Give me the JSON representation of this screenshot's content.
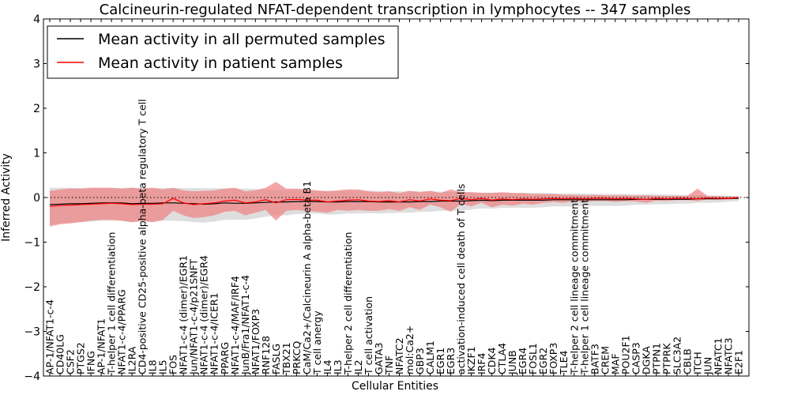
{
  "chart_data": {
    "type": "line",
    "title": "Calcineurin-regulated NFAT-dependent transcription in lymphocytes -- 347 samples",
    "xlabel": "Cellular Entities",
    "ylabel": "Inferred Activity",
    "ylim": [
      -4,
      4
    ],
    "yticks": [
      -4,
      -3,
      -2,
      -1,
      0,
      1,
      2,
      3,
      4
    ],
    "ytick_labels": [
      "−4",
      "−3",
      "−2",
      "−1",
      "0",
      "1",
      "2",
      "3",
      "4"
    ],
    "grid": false,
    "legend_position": "top-left",
    "categories": [
      "AP-1/NFAT1-c-4",
      "CD40LG",
      "CSF2",
      "PTGS2",
      "IFNG",
      "AP-1/NFAT1",
      "T-helper 1 cell differentiation",
      "NFAT1-c-4/PPARG",
      "IL2RA",
      "CD4-positive CD25-positive alpha-beta regulatory T cell",
      "IL8",
      "IL5",
      "FOS",
      "NFAT1-c-4 (dimer)/EGR1",
      "Jun/NFAT1-c-4/p21SNFT",
      "NFAT1-c-4 (dimer)/EGR4",
      "NFAT1-c-4/ICER1",
      "PPARG",
      "NFAT1-c-4/MAF/IRF4",
      "JunB/Fra1/NFAT1-c-4",
      "NFAT1/FOXP3",
      "RNF128",
      "FASLG",
      "TBX21",
      "PRKCQ",
      "CaM/Ca2+/Calcineurin A alpha-beta B1",
      "T cell anergy",
      "IL4",
      "IL3",
      "T-helper 2 cell differentiation",
      "IL2",
      "T cell activation",
      "GATA3",
      "TNF",
      "NFATC2",
      "mol:Ca2+",
      "GBP3",
      "CALM1",
      "EGR1",
      "EGR3",
      "activation-induced cell death of T cells",
      "IKZF1",
      "IRF4",
      "CDK4",
      "CTLA4",
      "JUNB",
      "EGR4",
      "FOSL1",
      "EGR2",
      "FOXP3",
      "TLE4",
      "T-helper 2 cell lineage commitment",
      "T-helper 1 cell lineage commitment",
      "BATF3",
      "CREM",
      "MAF",
      "POU2F1",
      "CASP3",
      "DGKA",
      "PTPN1",
      "PTPRK",
      "SLC3A2",
      "CBLB",
      "ITCH",
      "JUN",
      "NFATC1",
      "NFATC3",
      "E2F1"
    ],
    "series": [
      {
        "name": "Mean activity in all permuted samples",
        "color": "#000000",
        "band_color": "#c8c8c8",
        "values": [
          -0.16,
          -0.15,
          -0.14,
          -0.14,
          -0.13,
          -0.12,
          -0.12,
          -0.12,
          -0.14,
          -0.13,
          -0.13,
          -0.12,
          -0.12,
          -0.13,
          -0.14,
          -0.15,
          -0.14,
          -0.12,
          -0.13,
          -0.13,
          -0.12,
          -0.11,
          -0.1,
          -0.1,
          -0.09,
          -0.09,
          -0.09,
          -0.1,
          -0.1,
          -0.09,
          -0.09,
          -0.09,
          -0.1,
          -0.1,
          -0.1,
          -0.1,
          -0.09,
          -0.09,
          -0.08,
          -0.08,
          -0.08,
          -0.07,
          -0.06,
          -0.07,
          -0.06,
          -0.06,
          -0.06,
          -0.06,
          -0.06,
          -0.05,
          -0.05,
          -0.05,
          -0.05,
          -0.05,
          -0.05,
          -0.05,
          -0.05,
          -0.04,
          -0.04,
          -0.04,
          -0.04,
          -0.04,
          -0.04,
          -0.03,
          -0.03,
          -0.03,
          -0.02,
          -0.02
        ],
        "lower": [
          -0.6,
          -0.58,
          -0.56,
          -0.55,
          -0.54,
          -0.52,
          -0.52,
          -0.52,
          -0.56,
          -0.54,
          -0.55,
          -0.52,
          -0.52,
          -0.53,
          -0.55,
          -0.56,
          -0.54,
          -0.5,
          -0.5,
          -0.5,
          -0.47,
          -0.43,
          -0.4,
          -0.4,
          -0.37,
          -0.37,
          -0.36,
          -0.38,
          -0.38,
          -0.36,
          -0.36,
          -0.35,
          -0.36,
          -0.35,
          -0.34,
          -0.34,
          -0.32,
          -0.32,
          -0.3,
          -0.3,
          -0.3,
          -0.27,
          -0.24,
          -0.25,
          -0.23,
          -0.23,
          -0.23,
          -0.23,
          -0.22,
          -0.2,
          -0.2,
          -0.2,
          -0.19,
          -0.19,
          -0.19,
          -0.19,
          -0.18,
          -0.16,
          -0.16,
          -0.15,
          -0.15,
          -0.14,
          -0.14,
          -0.12,
          -0.12,
          -0.11,
          -0.09,
          -0.08
        ],
        "upper": [
          0.22,
          0.22,
          0.22,
          0.21,
          0.21,
          0.21,
          0.21,
          0.21,
          0.22,
          0.21,
          0.21,
          0.21,
          0.21,
          0.21,
          0.21,
          0.21,
          0.21,
          0.2,
          0.2,
          0.2,
          0.19,
          0.18,
          0.17,
          0.17,
          0.16,
          0.16,
          0.15,
          0.15,
          0.15,
          0.15,
          0.15,
          0.15,
          0.15,
          0.14,
          0.14,
          0.14,
          0.14,
          0.14,
          0.13,
          0.13,
          0.13,
          0.12,
          0.11,
          0.11,
          0.1,
          0.1,
          0.1,
          0.1,
          0.1,
          0.09,
          0.09,
          0.09,
          0.09,
          0.08,
          0.08,
          0.08,
          0.08,
          0.07,
          0.07,
          0.07,
          0.07,
          0.06,
          0.06,
          0.05,
          0.05,
          0.05,
          0.04,
          0.03
        ]
      },
      {
        "name": "Mean activity in patient samples",
        "color": "#ff0000",
        "band_color": "#f08080",
        "values": [
          -0.2,
          -0.18,
          -0.17,
          -0.16,
          -0.15,
          -0.14,
          -0.13,
          -0.14,
          -0.16,
          -0.15,
          -0.15,
          -0.14,
          -0.02,
          -0.12,
          -0.16,
          -0.14,
          -0.12,
          -0.08,
          -0.06,
          -0.12,
          -0.1,
          -0.05,
          -0.12,
          -0.05,
          -0.04,
          -0.06,
          -0.06,
          -0.1,
          -0.08,
          -0.06,
          -0.05,
          -0.08,
          -0.09,
          -0.07,
          -0.1,
          -0.05,
          -0.08,
          -0.03,
          -0.06,
          -0.07,
          -0.02,
          -0.05,
          -0.02,
          -0.06,
          -0.03,
          -0.05,
          -0.03,
          -0.04,
          -0.03,
          -0.02,
          -0.03,
          -0.02,
          -0.03,
          -0.02,
          -0.02,
          -0.03,
          -0.02,
          -0.03,
          -0.04,
          -0.02,
          -0.03,
          -0.02,
          -0.02,
          -0.03,
          -0.01,
          -0.02,
          -0.02,
          0.0
        ],
        "lower": [
          -0.65,
          -0.6,
          -0.58,
          -0.55,
          -0.52,
          -0.5,
          -0.5,
          -0.52,
          -0.55,
          -0.52,
          -0.55,
          -0.5,
          -0.3,
          -0.4,
          -0.46,
          -0.44,
          -0.4,
          -0.32,
          -0.3,
          -0.4,
          -0.34,
          -0.28,
          -0.52,
          -0.3,
          -0.28,
          -0.3,
          -0.32,
          -0.34,
          -0.28,
          -0.3,
          -0.28,
          -0.3,
          -0.3,
          -0.26,
          -0.3,
          -0.22,
          -0.28,
          -0.16,
          -0.22,
          -0.32,
          -0.14,
          -0.2,
          -0.12,
          -0.22,
          -0.16,
          -0.18,
          -0.14,
          -0.16,
          -0.12,
          -0.1,
          -0.12,
          -0.08,
          -0.1,
          -0.08,
          -0.08,
          -0.1,
          -0.08,
          -0.09,
          -0.12,
          -0.07,
          -0.08,
          -0.06,
          -0.06,
          -0.08,
          -0.04,
          -0.05,
          -0.05,
          -0.02
        ],
        "upper": [
          0.15,
          0.18,
          0.2,
          0.2,
          0.22,
          0.22,
          0.22,
          0.2,
          0.22,
          0.2,
          0.22,
          0.18,
          0.22,
          0.16,
          0.14,
          0.15,
          0.16,
          0.2,
          0.22,
          0.14,
          0.16,
          0.22,
          0.35,
          0.2,
          0.2,
          0.18,
          0.16,
          0.14,
          0.16,
          0.18,
          0.18,
          0.14,
          0.12,
          0.14,
          0.1,
          0.15,
          0.12,
          0.15,
          0.1,
          0.18,
          0.12,
          0.12,
          0.1,
          0.1,
          0.12,
          0.1,
          0.1,
          0.08,
          0.08,
          0.08,
          0.06,
          0.06,
          0.05,
          0.06,
          0.05,
          0.05,
          0.05,
          0.04,
          0.05,
          0.04,
          0.03,
          0.04,
          0.03,
          0.2,
          0.03,
          0.03,
          0.02,
          0.02
        ]
      }
    ]
  }
}
